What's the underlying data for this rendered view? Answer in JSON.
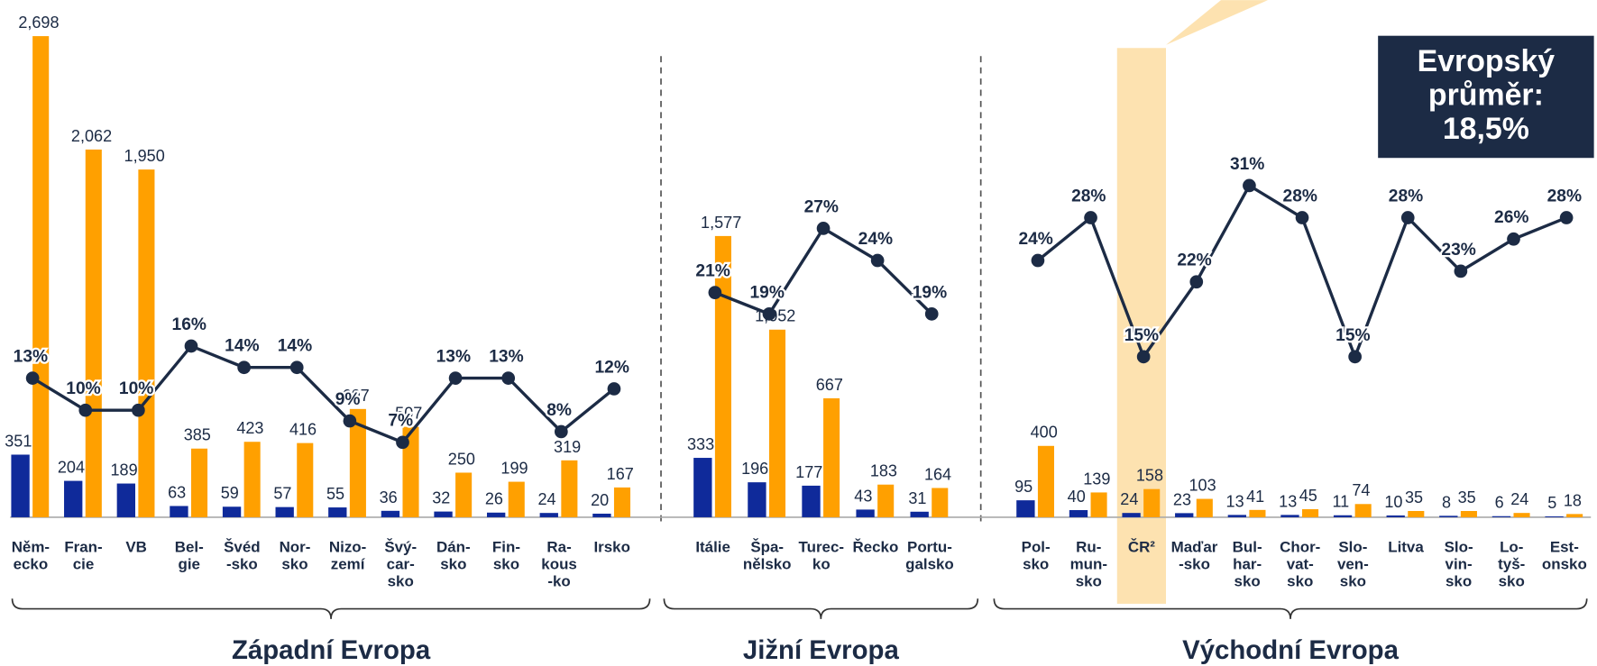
{
  "chart_data": [
    {
      "type": "bar",
      "title": "Západní Evropa",
      "ylim": [
        0,
        2700
      ],
      "y2lim": [
        0,
        45
      ],
      "categories": [
        "Něm-\necko",
        "Fran-\ncie",
        "VB",
        "Bel-\ngie",
        "Švéd\n-sko",
        "Nor-\nsko",
        "Nizo-\nzemí",
        "Švý-\ncar-\nsko",
        "Dán-\nsko",
        "Fin-\nsko",
        "Ra-\nkous\n-ko",
        "Irsko"
      ],
      "series": [
        {
          "color": "#0f2a9a",
          "values": [
            351,
            204,
            189,
            63,
            59,
            57,
            55,
            36,
            32,
            26,
            24,
            20
          ]
        },
        {
          "color": "#ffa000",
          "values": [
            2698,
            2062,
            1950,
            385,
            423,
            416,
            607,
            507,
            250,
            199,
            319,
            167
          ],
          "value_labels": [
            "2,698",
            "2,062",
            "1,950",
            "385",
            "423",
            "416",
            "607",
            "507",
            "250",
            "199",
            "319",
            "167"
          ]
        },
        {
          "type": "line",
          "axis": "y2",
          "color": "#1c2b45",
          "values": [
            13,
            10,
            10,
            16,
            14,
            14,
            9,
            7,
            13,
            13,
            8,
            12
          ],
          "value_labels": [
            "13%",
            "10%",
            "10%",
            "16%",
            "14%",
            "14%",
            "9%",
            "7%",
            "13%",
            "13%",
            "8%",
            "12%"
          ]
        }
      ]
    },
    {
      "type": "bar",
      "title": "Jižní Evropa",
      "ylim": [
        0,
        2700
      ],
      "y2lim": [
        0,
        45
      ],
      "categories": [
        "Itálie",
        "Špa-\nnělsko",
        "Turec-\nko",
        "Řecko",
        "Portu-\ngalsko"
      ],
      "series": [
        {
          "color": "#0f2a9a",
          "values": [
            333,
            196,
            177,
            43,
            31
          ]
        },
        {
          "color": "#ffa000",
          "values": [
            1577,
            1052,
            667,
            183,
            164
          ],
          "value_labels": [
            "1,577",
            "1,052",
            "667",
            "183",
            "164"
          ]
        },
        {
          "type": "line",
          "axis": "y2",
          "color": "#1c2b45",
          "values": [
            21,
            19,
            27,
            24,
            19
          ],
          "value_labels": [
            "21%",
            "19%",
            "27%",
            "24%",
            "19%"
          ]
        }
      ]
    },
    {
      "type": "bar",
      "title": "Východní Evropa",
      "ylim": [
        0,
        2700
      ],
      "y2lim": [
        0,
        45
      ],
      "highlight_index": 2,
      "annotation": "Evropský průměr: 18,5%",
      "categories": [
        "Pol-\nsko",
        "Ru-\nmun-\nsko",
        "ČR²",
        "Maďar\n-sko",
        "Bul-\nhar-\nsko",
        "Chor-\nvat-\nsko",
        "Slo-\nven-\nsko",
        "Litva",
        "Slo-\nvin-\nsko",
        "Lo-\ntyš-\nsko",
        "Est-\nonsko"
      ],
      "series": [
        {
          "color": "#0f2a9a",
          "values": [
            95,
            40,
            24,
            23,
            13,
            13,
            11,
            10,
            8,
            6,
            5
          ]
        },
        {
          "color": "#ffa000",
          "values": [
            400,
            139,
            158,
            103,
            41,
            45,
            74,
            35,
            35,
            24,
            18
          ],
          "value_labels": [
            "400",
            "139",
            "158",
            "103",
            "41",
            "45",
            "74",
            "35",
            "35",
            "24",
            "18"
          ]
        },
        {
          "type": "line",
          "axis": "y2",
          "color": "#1c2b45",
          "values": [
            24,
            28,
            15,
            22,
            31,
            28,
            15,
            28,
            23,
            26,
            28
          ],
          "value_labels": [
            "24%",
            "28%",
            "15%",
            "22%",
            "31%",
            "28%",
            "15%",
            "28%",
            "23%",
            "26%",
            "28%"
          ]
        }
      ]
    }
  ]
}
